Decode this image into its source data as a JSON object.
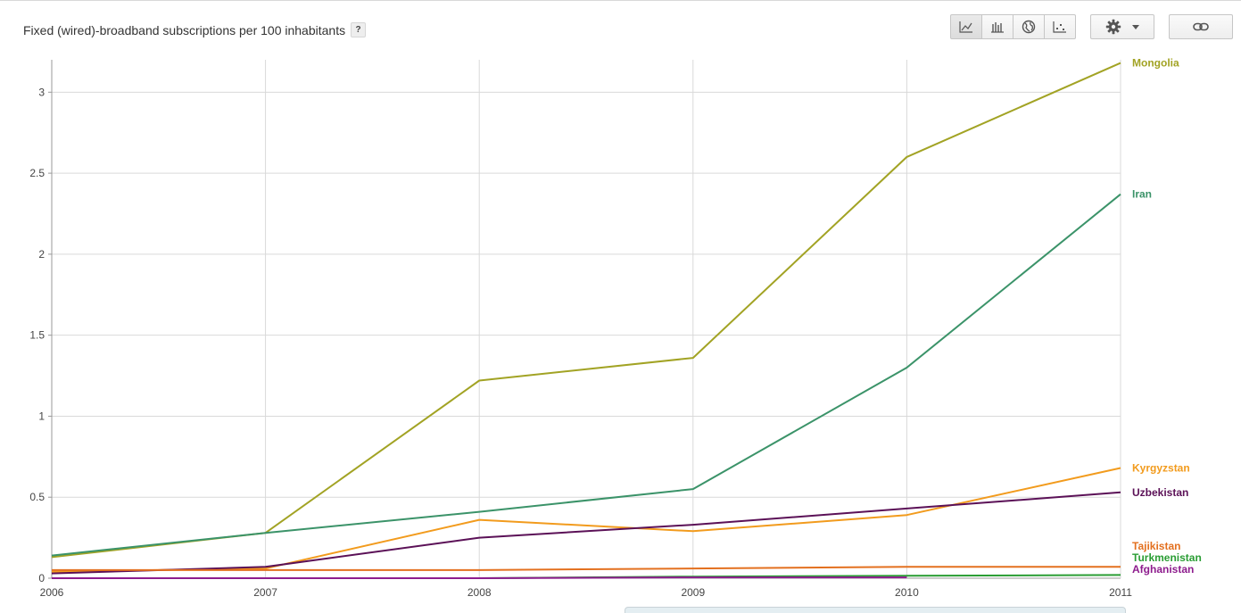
{
  "title": "Fixed (wired)-broadband subscriptions per 100 inhabitants",
  "help_label": "?",
  "toolbar": {
    "views": [
      {
        "name": "line-chart-icon"
      },
      {
        "name": "bar-chart-icon"
      },
      {
        "name": "globe-icon"
      },
      {
        "name": "scatter-chart-icon"
      }
    ],
    "settings_icon": "gear-icon",
    "dropdown_icon": "chevron-down-icon",
    "link_icon": "link-icon"
  },
  "chart_data": {
    "type": "line",
    "title": "Fixed (wired)-broadband subscriptions per 100 inhabitants",
    "x": [
      2006,
      2007,
      2008,
      2009,
      2010,
      2011
    ],
    "x_tick_labels": [
      "2006",
      "2007",
      "2008",
      "2009",
      "2010",
      "2011"
    ],
    "ylim": [
      0,
      3.2
    ],
    "y_ticks": [
      0,
      0.5,
      1,
      1.5,
      2,
      2.5,
      3
    ],
    "y_tick_labels": [
      "0",
      "0.5",
      "1",
      "1.5",
      "2",
      "2.5",
      "3"
    ],
    "grid": true,
    "legend": "right-end labels",
    "series": [
      {
        "name": "Mongolia",
        "color": "#a2a324",
        "values": [
          0.13,
          0.28,
          1.22,
          1.36,
          2.6,
          3.18
        ]
      },
      {
        "name": "Iran",
        "color": "#3b9369",
        "values": [
          0.14,
          0.28,
          0.41,
          0.55,
          1.3,
          2.37
        ]
      },
      {
        "name": "Kyrgyzstan",
        "color": "#f29b1d",
        "values": [
          0.04,
          0.06,
          0.36,
          0.29,
          0.39,
          0.68
        ]
      },
      {
        "name": "Uzbekistan",
        "color": "#5b1157",
        "values": [
          0.03,
          0.07,
          0.25,
          0.33,
          0.43,
          0.53
        ]
      },
      {
        "name": "Tajikistan",
        "color": "#e3701f",
        "values": [
          0.05,
          0.05,
          0.05,
          0.06,
          0.07,
          0.07
        ]
      },
      {
        "name": "Turkmenistan",
        "color": "#2a9d34",
        "values": [
          null,
          null,
          0.0,
          0.01,
          0.015,
          0.02
        ]
      },
      {
        "name": "Afghanistan",
        "color": "#8d1c8d",
        "values": [
          0.0,
          0.0,
          0.0,
          0.005,
          0.005,
          null
        ]
      }
    ]
  }
}
